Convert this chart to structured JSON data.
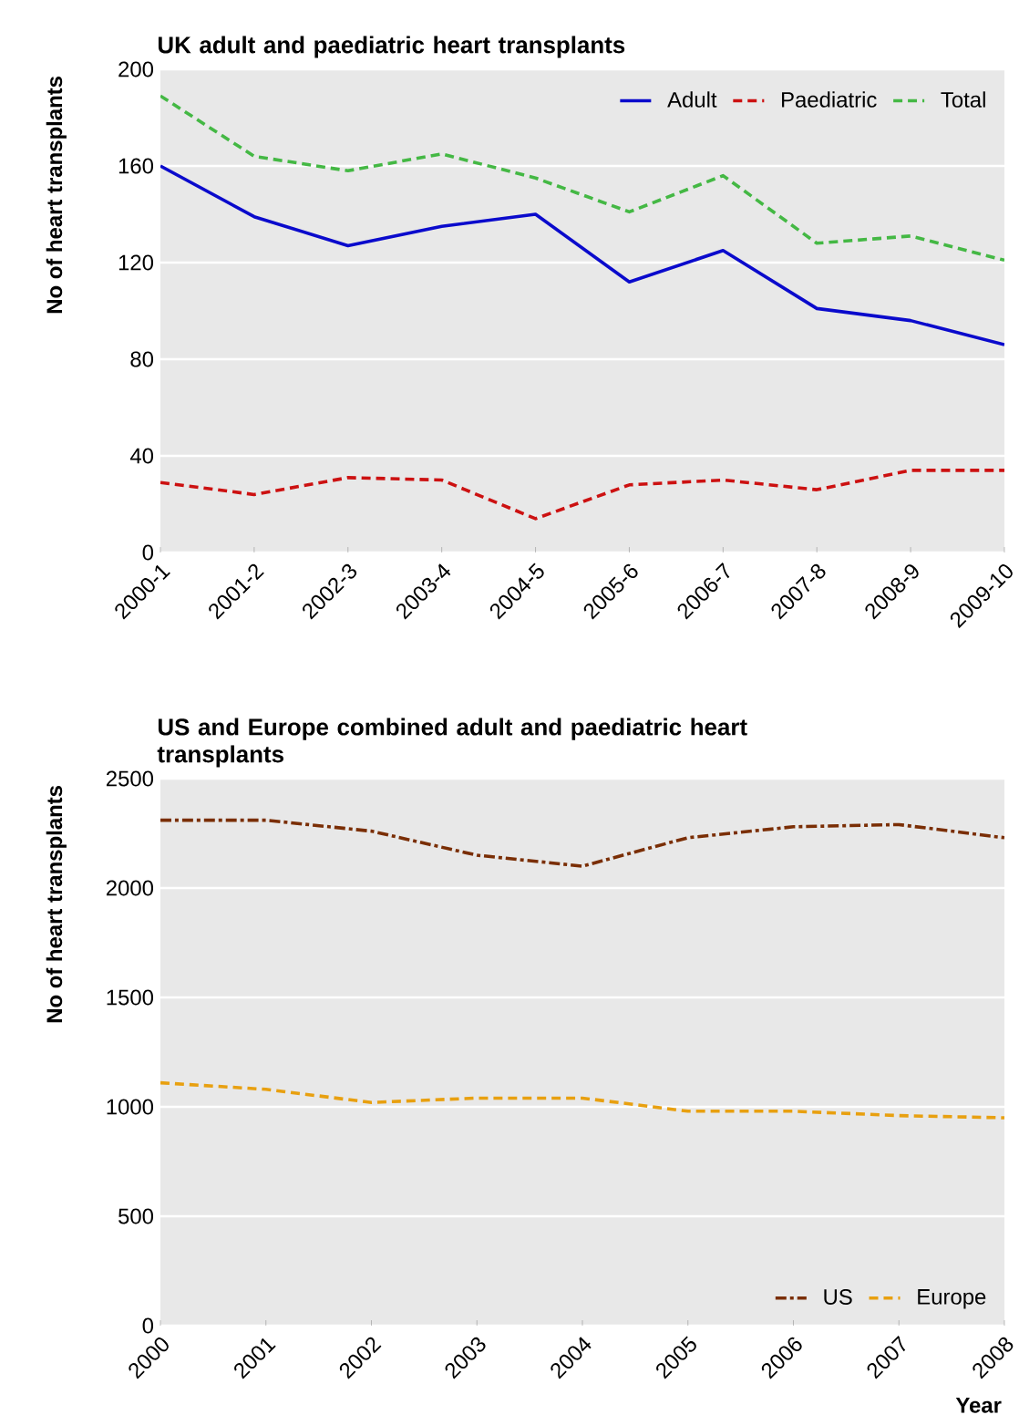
{
  "chart_data": [
    {
      "type": "line",
      "title": "UK adult and paediatric heart transplants",
      "ylabel": "No of heart transplants",
      "categories": [
        "2000-1",
        "2001-2",
        "2002-3",
        "2003-4",
        "2004-5",
        "2005-6",
        "2006-7",
        "2007-8",
        "2008-9",
        "2009-10"
      ],
      "series": [
        {
          "name": "Adult",
          "color": "#0a0acc",
          "line_style": "solid",
          "values": [
            160,
            139,
            127,
            135,
            140,
            112,
            125,
            101,
            96,
            86
          ]
        },
        {
          "name": "Paediatric",
          "color": "#cc1111",
          "line_style": "dashed",
          "values": [
            29,
            24,
            31,
            30,
            14,
            28,
            30,
            26,
            34,
            34
          ]
        },
        {
          "name": "Total",
          "color": "#44b844",
          "line_style": "dashed",
          "values": [
            189,
            164,
            158,
            165,
            155,
            141,
            156,
            128,
            131,
            121
          ]
        }
      ],
      "ylim": [
        0,
        200
      ],
      "yticks": [
        0,
        40,
        80,
        120,
        160,
        200
      ],
      "grid": "y",
      "legend": "top right",
      "marker": "none"
    },
    {
      "type": "line",
      "title": "US and Europe combined adult and paediatric heart transplants",
      "xlabel": "Year",
      "ylabel": "No of heart transplants",
      "categories": [
        "2000",
        "2001",
        "2002",
        "2003",
        "2004",
        "2005",
        "2006",
        "2007",
        "2008"
      ],
      "series": [
        {
          "name": "US",
          "color": "#7a2e05",
          "line_style": "dashdot",
          "values": [
            2310,
            2310,
            2260,
            2150,
            2100,
            2230,
            2280,
            2290,
            2230
          ]
        },
        {
          "name": "Europe",
          "color": "#e8a010",
          "line_style": "dashed",
          "values": [
            1110,
            1080,
            1020,
            1040,
            1040,
            980,
            980,
            960,
            950
          ]
        }
      ],
      "ylim": [
        0,
        2500
      ],
      "yticks": [
        0,
        500,
        1000,
        1500,
        2000,
        2500
      ],
      "grid": "y",
      "legend": "bottom right",
      "marker": "none"
    }
  ]
}
